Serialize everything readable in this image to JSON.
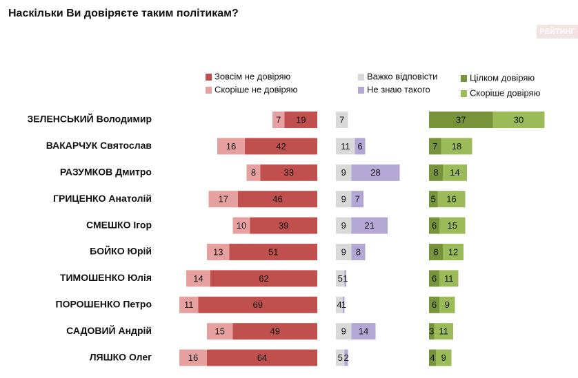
{
  "chart_data": {
    "type": "bar",
    "title": "Наскільки Ви довіряєте таким політикам?",
    "logo": "РЕЙТИНГ",
    "categories": [
      "ЗЕЛЕНСЬКИЙ Володимир",
      "ВАКАРЧУК Святослав",
      "РАЗУМКОВ Дмитро",
      "ГРИЦЕНКО Анатолій",
      "СМЕШКО Ігор",
      "БОЙКО Юрій",
      "ТИМОШЕНКО Юлія",
      "ПОРОШЕНКО Петро",
      "САДОВИЙ Андрій",
      "ЛЯШКО Олег"
    ],
    "series": [
      {
        "name": "Зовсім не довіряю",
        "color": "#c0504d",
        "values": [
          19,
          42,
          33,
          46,
          39,
          51,
          62,
          69,
          49,
          64
        ]
      },
      {
        "name": "Скоріше не довіряю",
        "color": "#e6a0a0",
        "values": [
          7,
          16,
          8,
          17,
          10,
          13,
          14,
          11,
          15,
          16
        ]
      },
      {
        "name": "Важко відповісти",
        "color": "#d9d9d9",
        "values": [
          7,
          11,
          9,
          9,
          9,
          9,
          5,
          4,
          9,
          5
        ]
      },
      {
        "name": "Не знаю такого",
        "color": "#b4a7d6",
        "values": [
          null,
          6,
          28,
          7,
          21,
          8,
          1,
          1,
          14,
          2
        ]
      },
      {
        "name": "Цілком довіряю",
        "color": "#77933c",
        "values": [
          37,
          7,
          8,
          5,
          6,
          8,
          6,
          6,
          3,
          4
        ]
      },
      {
        "name": "Скоріше довіряю",
        "color": "#9bbb59",
        "values": [
          30,
          18,
          14,
          16,
          15,
          12,
          11,
          9,
          11,
          9
        ]
      }
    ]
  }
}
